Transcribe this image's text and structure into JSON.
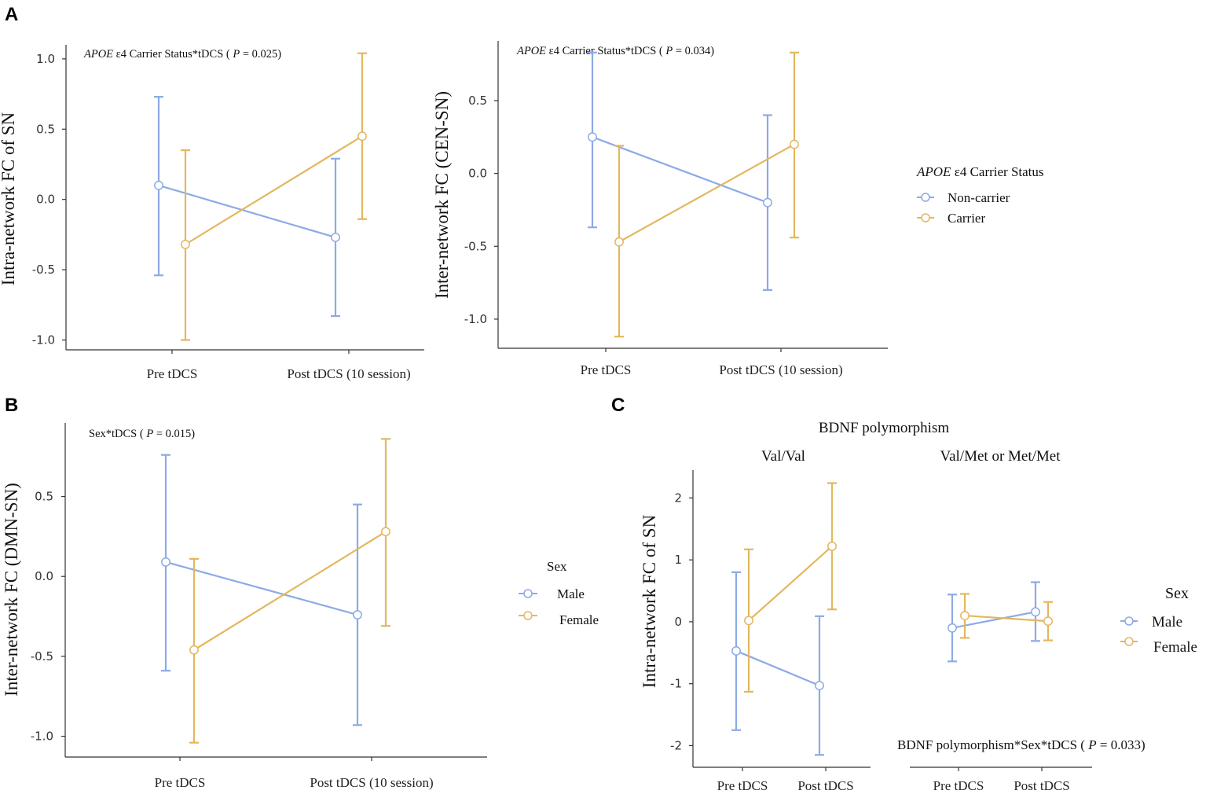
{
  "figure": {
    "panel_labels": {
      "A": "A",
      "B": "B",
      "C": "C"
    }
  },
  "colors": {
    "series1": "#8caae6",
    "series2": "#e3b75e",
    "axis": "#333333"
  },
  "legends": {
    "apoe": {
      "title_italic": "APOE",
      "title_rest": " ε4 Carrier Status",
      "items": [
        "Non-carrier",
        "Carrier"
      ]
    },
    "sex_b": {
      "title": "Sex",
      "items": [
        "Male",
        "Female"
      ]
    },
    "sex_c": {
      "title": "Sex",
      "items": [
        "Male",
        "Female"
      ]
    }
  },
  "chart_data": [
    {
      "id": "A1",
      "type": "line",
      "ylabel": "Intra-network FC of SN",
      "annotation": {
        "italic": "APOE",
        "text": " ε4 Carrier Status*tDCS ( ",
        "p_italic": "P",
        "p_text": " = 0.025)"
      },
      "categories": [
        "Pre tDCS",
        "Post tDCS (10 session)"
      ],
      "ylim": [
        -1.07,
        1.1
      ],
      "yticks": [
        -1.0,
        -0.5,
        0.0,
        0.5,
        1.0
      ],
      "ytick_labels": [
        "-1.0",
        "-0.5",
        "0.0",
        "0.5",
        "1.0"
      ],
      "series": [
        {
          "name": "Non-carrier",
          "values": [
            0.1,
            -0.27
          ],
          "lower": [
            -0.54,
            -0.83
          ],
          "upper": [
            0.73,
            0.29
          ]
        },
        {
          "name": "Carrier",
          "values": [
            -0.32,
            0.45
          ],
          "lower": [
            -1.0,
            -0.14
          ],
          "upper": [
            0.35,
            1.04
          ]
        }
      ]
    },
    {
      "id": "A2",
      "type": "line",
      "ylabel": "Inter-network FC (CEN-SN)",
      "annotation": {
        "italic": "APOE",
        "text": " ε4 Carrier Status*tDCS ( ",
        "p_italic": "P",
        "p_text": " = 0.034)"
      },
      "categories": [
        "Pre tDCS",
        "Post tDCS (10 session)"
      ],
      "ylim": [
        -1.2,
        0.91
      ],
      "yticks": [
        -1.0,
        -0.5,
        0.0,
        0.5
      ],
      "ytick_labels": [
        "-1.0",
        "-0.5",
        "0.0",
        "0.5"
      ],
      "series": [
        {
          "name": "Non-carrier",
          "values": [
            0.25,
            -0.2
          ],
          "lower": [
            -0.37,
            -0.8
          ],
          "upper": [
            0.83,
            0.4
          ]
        },
        {
          "name": "Carrier",
          "values": [
            -0.47,
            0.2
          ],
          "lower": [
            -1.12,
            -0.44
          ],
          "upper": [
            0.19,
            0.83
          ]
        }
      ]
    },
    {
      "id": "B",
      "type": "line",
      "ylabel": "Inter-network FC (DMN-SN)",
      "annotation": {
        "text": "Sex*tDCS ( ",
        "p_italic": "P",
        "p_text": " = 0.015)"
      },
      "categories": [
        "Pre tDCS",
        "Post tDCS (10 session)"
      ],
      "ylim": [
        -1.13,
        0.96
      ],
      "yticks": [
        -1.0,
        -0.5,
        0.0,
        0.5
      ],
      "ytick_labels": [
        "-1.0",
        "-0.5",
        "0.0",
        "0.5"
      ],
      "series": [
        {
          "name": "Male",
          "values": [
            0.09,
            -0.24
          ],
          "lower": [
            -0.59,
            -0.93
          ],
          "upper": [
            0.76,
            0.45
          ]
        },
        {
          "name": "Female",
          "values": [
            -0.46,
            0.28
          ],
          "lower": [
            -1.04,
            -0.31
          ],
          "upper": [
            0.11,
            0.86
          ]
        }
      ]
    },
    {
      "id": "C",
      "type": "line",
      "title": "BDNF polymorphism",
      "ylabel": "Intra-network FC of SN",
      "annotation": {
        "text": "BDNF polymorphism*Sex*tDCS ( ",
        "p_italic": "P",
        "p_text": " = 0.033)"
      },
      "facets": [
        "Val/Val",
        "Val/Met or Met/Met"
      ],
      "categories": [
        "Pre tDCS",
        "Post tDCS"
      ],
      "ylim": [
        -2.35,
        2.45
      ],
      "yticks": [
        -2,
        -1,
        0,
        1,
        2
      ],
      "ytick_labels": [
        "-2",
        "-1",
        "0",
        "1",
        "2"
      ],
      "panels": [
        {
          "facet": "Val/Val",
          "series": [
            {
              "name": "Male",
              "values": [
                -0.47,
                -1.03
              ],
              "lower": [
                -1.75,
                -2.15
              ],
              "upper": [
                0.8,
                0.09
              ]
            },
            {
              "name": "Female",
              "values": [
                0.02,
                1.22
              ],
              "lower": [
                -1.13,
                0.2
              ],
              "upper": [
                1.17,
                2.24
              ]
            }
          ]
        },
        {
          "facet": "Val/Met or Met/Met",
          "series": [
            {
              "name": "Male",
              "values": [
                -0.1,
                0.16
              ],
              "lower": [
                -0.64,
                -0.31
              ],
              "upper": [
                0.44,
                0.64
              ]
            },
            {
              "name": "Female",
              "values": [
                0.1,
                0.01
              ],
              "lower": [
                -0.26,
                -0.3
              ],
              "upper": [
                0.45,
                0.32
              ]
            }
          ]
        }
      ]
    }
  ]
}
